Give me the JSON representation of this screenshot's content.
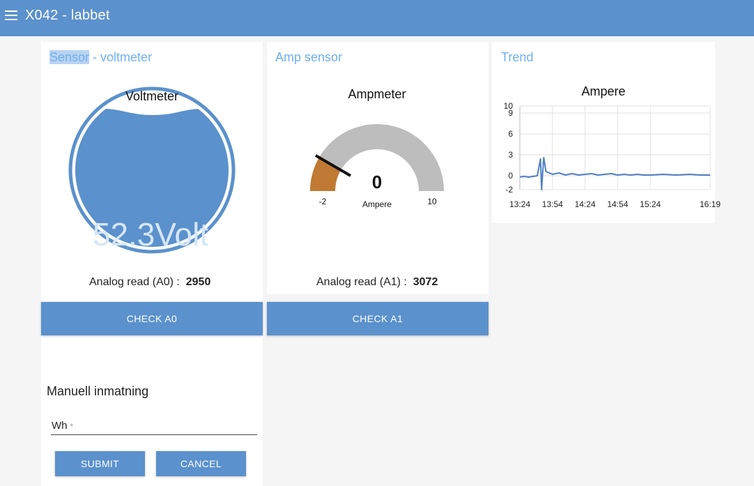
{
  "header": {
    "title": "X042 - labbet",
    "menu_icon": "hamburger-icon"
  },
  "colors": {
    "primary": "#5b91cc",
    "accent": "#6fb1ea",
    "gauge_fill": "#c07a33",
    "gauge_track": "#bdbdbd"
  },
  "volt_card": {
    "title_highlight": "Sensor",
    "title_rest": " - voltmeter",
    "gauge_label": "Voltmeter",
    "value_text": "52.3Volt",
    "read_label": "Analog read (A0) :",
    "read_value": "2950",
    "button": "CHECK A0"
  },
  "amp_card": {
    "title": "Amp sensor",
    "gauge_title": "Ampmeter",
    "value": "0",
    "units": "Ampere",
    "min": "-2",
    "max": "10",
    "read_label": "Analog read (A1) :",
    "read_value": "3072",
    "button": "CHECK A1"
  },
  "trend_card": {
    "title": "Trend",
    "chart_title": "Ampere"
  },
  "chart_data": {
    "type": "line",
    "title": "Ampere",
    "x_ticks": [
      "13:24",
      "13:54",
      "14:24",
      "14:54",
      "15:24",
      "16:19"
    ],
    "y_ticks": [
      "10",
      "9",
      "6",
      "3",
      "0",
      "-2"
    ],
    "ylim": [
      -2,
      10
    ],
    "grid": true,
    "series": [
      {
        "color": "#4d7fc4",
        "x": [
          "13:24",
          "13:28",
          "13:32",
          "13:40",
          "13:43",
          "13:44",
          "13:45",
          "13:46",
          "13:48",
          "13:54",
          "14:00",
          "14:06",
          "14:12",
          "14:18",
          "14:24",
          "14:30",
          "14:36",
          "14:42",
          "14:48",
          "14:54",
          "15:00",
          "15:06",
          "15:12",
          "15:18",
          "15:24",
          "15:36",
          "15:48",
          "16:00",
          "16:10",
          "16:19"
        ],
        "y": [
          -0.2,
          -0.1,
          -0.2,
          0.0,
          2.4,
          -2.0,
          0.5,
          2.6,
          0.6,
          0.2,
          0.4,
          0.1,
          0.3,
          0.1,
          0.2,
          0.3,
          0.1,
          0.2,
          0.3,
          0.1,
          0.2,
          0.1,
          0.2,
          0.1,
          0.1,
          0.2,
          0.1,
          0.2,
          0.1,
          0.1
        ]
      }
    ]
  },
  "manual": {
    "title": "Manuell inmatning",
    "field_label": "Wh",
    "required_mark": "*",
    "submit": "SUBMIT",
    "cancel": "CANCEL"
  }
}
